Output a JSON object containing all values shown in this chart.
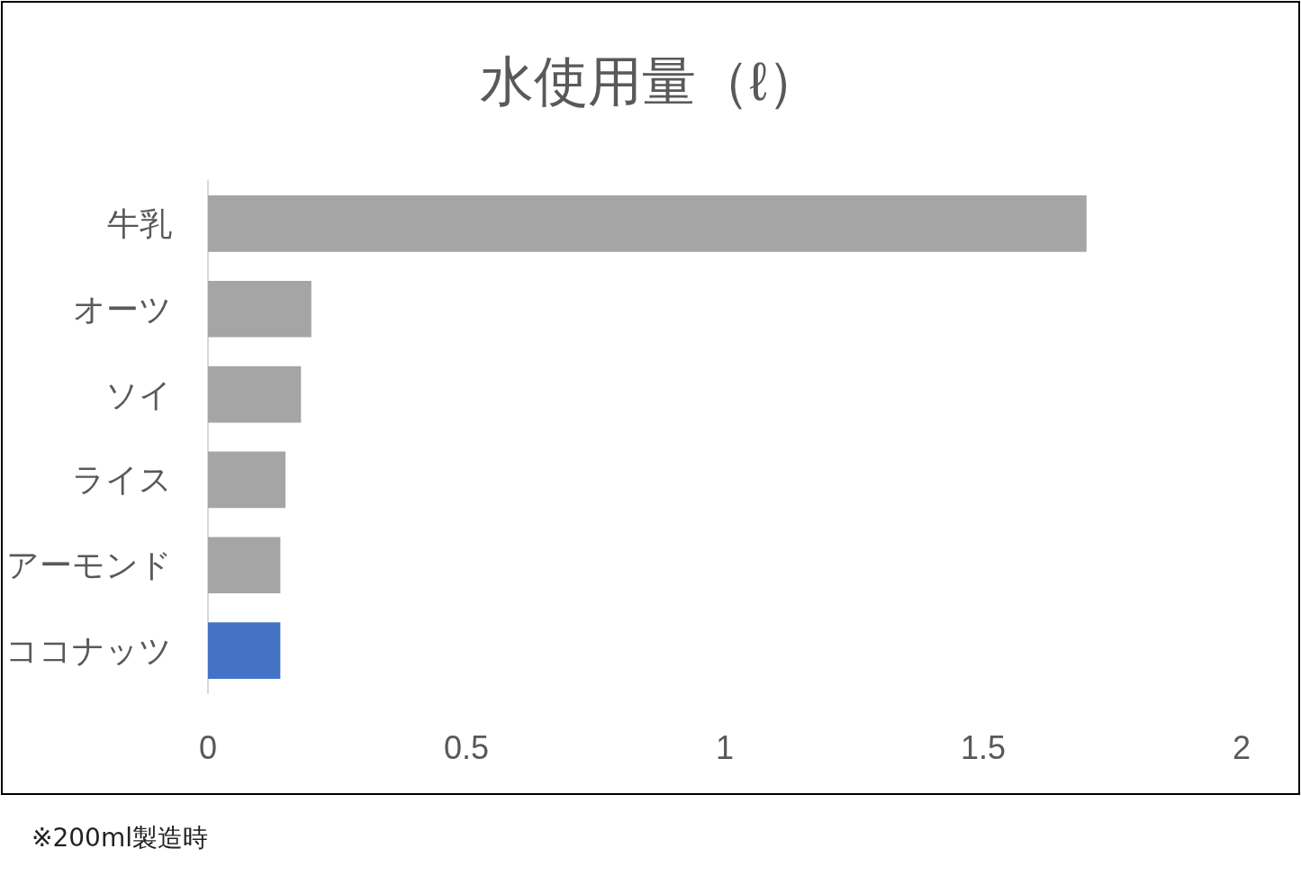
{
  "chart_data": {
    "type": "bar",
    "orientation": "horizontal",
    "title": "水使用量（ℓ）",
    "categories": [
      "牛乳",
      "オーツ",
      "ソイ",
      "ライス",
      "アーモンド",
      "ココナッツ"
    ],
    "values": [
      1.7,
      0.2,
      0.18,
      0.15,
      0.14,
      0.14
    ],
    "colors": [
      "#a5a5a5",
      "#a5a5a5",
      "#a5a5a5",
      "#a5a5a5",
      "#a5a5a5",
      "#4472c4"
    ],
    "xlim": [
      0,
      2
    ],
    "xticks": [
      0,
      0.5,
      1,
      1.5,
      2
    ],
    "annotations": [
      "※200ml製造時"
    ]
  }
}
